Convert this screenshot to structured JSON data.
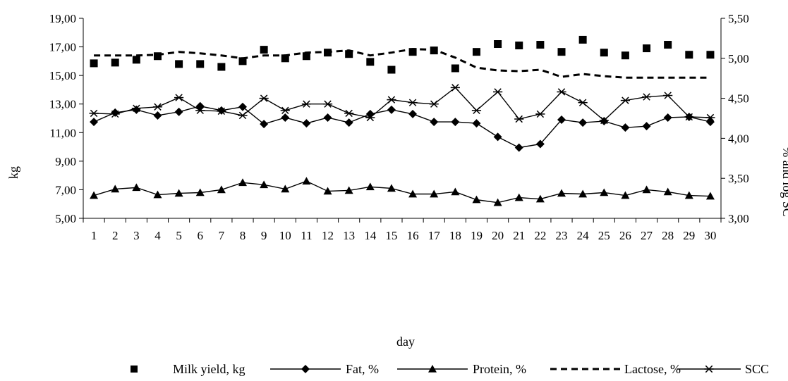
{
  "chart_data": {
    "type": "line",
    "title": "",
    "xlabel": "day",
    "ylabel_left": "kg",
    "ylabel_right": "% and log SC",
    "x": [
      1,
      2,
      3,
      4,
      5,
      6,
      7,
      8,
      9,
      10,
      11,
      12,
      13,
      14,
      15,
      16,
      17,
      18,
      19,
      20,
      21,
      22,
      23,
      24,
      25,
      26,
      27,
      28,
      29,
      30
    ],
    "x_tick_labels": [
      "1",
      "2",
      "3",
      "4",
      "5",
      "6",
      "7",
      "8",
      "9",
      "10",
      "11",
      "12",
      "13",
      "14",
      "15",
      "16",
      "17",
      "18",
      "19",
      "20",
      "21",
      "22",
      "23",
      "24",
      "25",
      "26",
      "27",
      "28",
      "29",
      "30"
    ],
    "left_axis": {
      "range": [
        5,
        19
      ],
      "ticks": [
        5,
        7,
        9,
        11,
        13,
        15,
        17,
        19
      ],
      "tick_labels": [
        "5,00",
        "7,00",
        "9,00",
        "11,00",
        "13,00",
        "15,00",
        "17,00",
        "19,00"
      ]
    },
    "right_axis": {
      "range": [
        3,
        5.5
      ],
      "ticks": [
        3,
        3.5,
        4,
        4.5,
        5,
        5.5
      ],
      "tick_labels": [
        "3,00",
        "3,50",
        "4,00",
        "4,50",
        "5,00",
        "5,50"
      ]
    },
    "grid": false,
    "legend_position": "bottom",
    "series": [
      {
        "name": "Milk yield, kg",
        "axis": "left",
        "style": "markers",
        "marker": "square",
        "color": "#000000",
        "values": [
          15.85,
          15.9,
          16.1,
          16.35,
          15.8,
          15.8,
          15.6,
          16.0,
          16.8,
          16.2,
          16.35,
          16.6,
          16.5,
          15.95,
          15.4,
          16.65,
          16.75,
          15.5,
          16.65,
          17.2,
          17.1,
          17.15,
          16.65,
          17.5,
          16.6,
          16.4,
          16.9,
          17.15,
          16.45,
          16.45
        ]
      },
      {
        "name": "Fat, %",
        "axis": "left",
        "style": "line",
        "marker": "diamond",
        "color": "#000000",
        "values": [
          11.75,
          12.4,
          12.6,
          12.2,
          12.45,
          12.85,
          12.55,
          12.8,
          11.6,
          12.05,
          11.65,
          12.05,
          11.7,
          12.3,
          12.6,
          12.3,
          11.75,
          11.75,
          11.65,
          10.7,
          9.95,
          10.2,
          11.9,
          11.7,
          11.8,
          11.35,
          11.45,
          12.05,
          12.1,
          11.75
        ]
      },
      {
        "name": "Protein, %",
        "axis": "left",
        "style": "line",
        "marker": "triangle",
        "color": "#000000",
        "values": [
          6.6,
          7.05,
          7.15,
          6.65,
          6.75,
          6.8,
          7.0,
          7.5,
          7.35,
          7.05,
          7.6,
          6.9,
          6.95,
          7.2,
          7.1,
          6.7,
          6.7,
          6.85,
          6.3,
          6.1,
          6.45,
          6.35,
          6.75,
          6.7,
          6.8,
          6.6,
          7.0,
          6.85,
          6.6,
          6.55
        ]
      },
      {
        "name": "Lactose, %",
        "axis": "left",
        "style": "dashed",
        "marker": "none",
        "color": "#000000",
        "values": [
          16.4,
          16.4,
          16.4,
          16.45,
          16.65,
          16.55,
          16.4,
          16.2,
          16.4,
          16.4,
          16.6,
          16.65,
          16.75,
          16.4,
          16.6,
          16.85,
          16.8,
          16.25,
          15.55,
          15.35,
          15.3,
          15.4,
          14.9,
          15.1,
          14.95,
          14.85,
          14.85,
          14.85,
          14.85,
          14.85
        ]
      },
      {
        "name": "SCC",
        "axis": "left",
        "style": "line",
        "marker": "asterisk",
        "color": "#000000",
        "values": [
          12.35,
          12.3,
          12.7,
          12.8,
          13.45,
          12.55,
          12.5,
          12.2,
          13.4,
          12.55,
          13.0,
          13.0,
          12.35,
          12.05,
          13.3,
          13.1,
          13.0,
          14.15,
          12.55,
          13.85,
          11.95,
          12.3,
          13.85,
          13.1,
          11.85,
          13.25,
          13.5,
          13.6,
          12.1,
          12.05
        ]
      }
    ]
  }
}
